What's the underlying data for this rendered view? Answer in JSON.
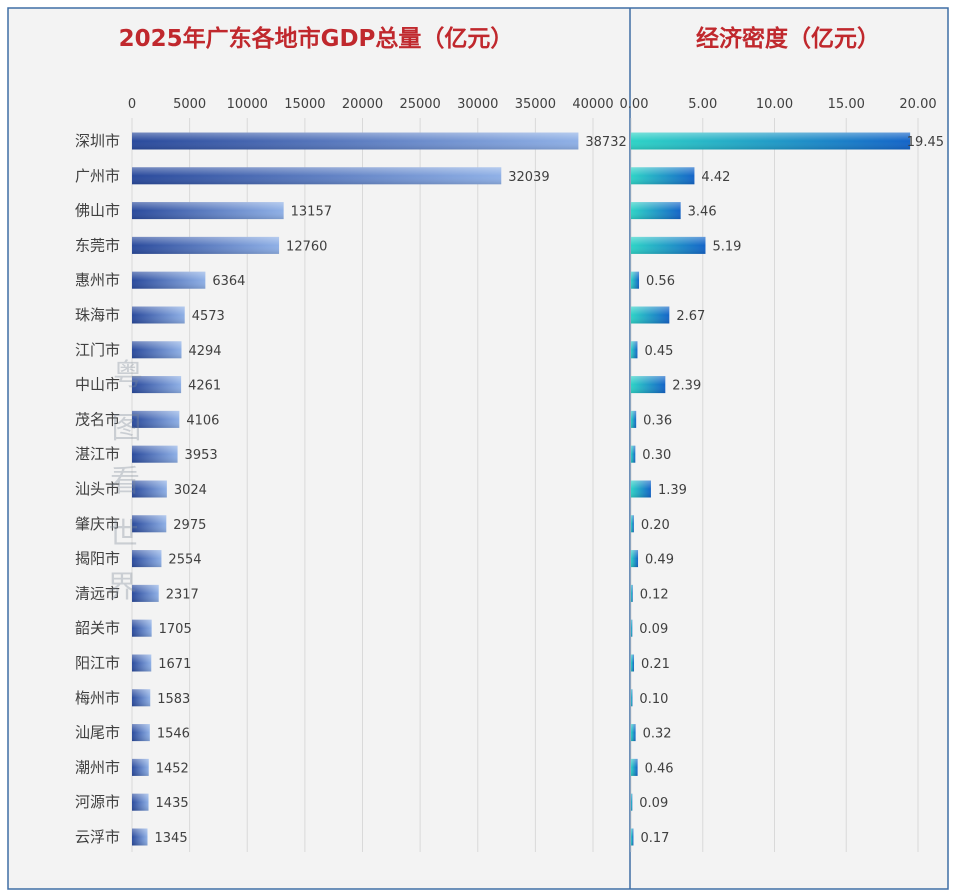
{
  "chart_data": [
    {
      "type": "bar",
      "orientation": "horizontal",
      "title": "2025年广东各地市GDP总量（亿元）",
      "categories": [
        "深圳市",
        "广州市",
        "佛山市",
        "东莞市",
        "惠州市",
        "珠海市",
        "江门市",
        "中山市",
        "茂名市",
        "湛江市",
        "汕头市",
        "肇庆市",
        "揭阳市",
        "清远市",
        "韶关市",
        "阳江市",
        "梅州市",
        "汕尾市",
        "潮州市",
        "河源市",
        "云浮市"
      ],
      "values": [
        38732,
        32039,
        13157,
        12760,
        6364,
        4573,
        4294,
        4261,
        4106,
        3953,
        3024,
        2975,
        2554,
        2317,
        1705,
        1671,
        1583,
        1546,
        1452,
        1435,
        1345
      ],
      "value_labels": [
        "38732",
        "32039",
        "13157",
        "12760",
        "6364",
        "4573",
        "4294",
        "4261",
        "4106",
        "3953",
        "3024",
        "2975",
        "2554",
        "2317",
        "1705",
        "1671",
        "1583",
        "1546",
        "1452",
        "1435",
        "1345"
      ],
      "xlim": [
        0,
        40000
      ],
      "xticks": [
        "0",
        "5000",
        "10000",
        "15000",
        "20000",
        "25000",
        "30000",
        "35000",
        "40000"
      ],
      "axis_position": "top",
      "grid": true,
      "colors": {
        "title": "#c0282d",
        "bar_dark": "#2a4a9c",
        "bar_light": "#8fb0e6"
      }
    },
    {
      "type": "bar",
      "orientation": "horizontal",
      "title": "经济密度（亿元）",
      "categories": [
        "深圳市",
        "广州市",
        "佛山市",
        "东莞市",
        "惠州市",
        "珠海市",
        "江门市",
        "中山市",
        "茂名市",
        "湛江市",
        "汕头市",
        "肇庆市",
        "揭阳市",
        "清远市",
        "韶关市",
        "阳江市",
        "梅州市",
        "汕尾市",
        "潮州市",
        "河源市",
        "云浮市"
      ],
      "values": [
        19.45,
        4.42,
        3.46,
        5.19,
        0.56,
        2.67,
        0.45,
        2.39,
        0.36,
        0.3,
        1.39,
        0.2,
        0.49,
        0.12,
        0.09,
        0.21,
        0.1,
        0.32,
        0.46,
        0.09,
        0.17
      ],
      "value_labels": [
        "19.45",
        "4.42",
        "3.46",
        "5.19",
        "0.56",
        "2.67",
        "0.45",
        "2.39",
        "0.36",
        "0.30",
        "1.39",
        "0.20",
        "0.49",
        "0.12",
        "0.09",
        "0.21",
        "0.10",
        "0.32",
        "0.46",
        "0.09",
        "0.17"
      ],
      "xlim": [
        0,
        20
      ],
      "xticks": [
        "0.00",
        "5.00",
        "10.00",
        "15.00",
        "20.00"
      ],
      "axis_position": "top",
      "grid": true,
      "colors": {
        "title": "#c0282d",
        "bar_start": "#2ed3c6",
        "bar_end": "#1464c8"
      }
    }
  ],
  "watermark": "粤图看世界",
  "colors": {
    "panel_border": "#3f6ea5",
    "panel_bg": "#f3f3f3",
    "text": "#404040",
    "grid": "#d9d9d9"
  }
}
